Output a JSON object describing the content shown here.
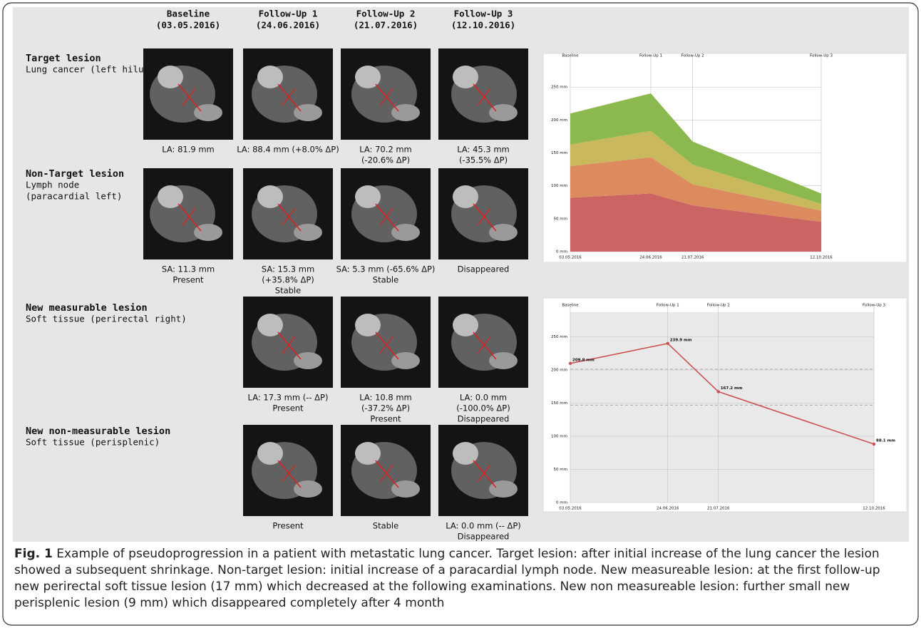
{
  "columns": [
    {
      "title": "Baseline",
      "date": "(03.05.2016)"
    },
    {
      "title": "Follow-Up 1",
      "date": "(24.06.2016)"
    },
    {
      "title": "Follow-Up 2",
      "date": "(21.07.2016)"
    },
    {
      "title": "Follow-Up 3",
      "date": "(12.10.2016)"
    }
  ],
  "rows": [
    {
      "title": "Target lesion",
      "subtitle": [
        "Lung cancer (left hilus)"
      ],
      "cells": [
        {
          "lines": [
            "LA: 81.9 mm"
          ]
        },
        {
          "lines": [
            "LA: 88.4 mm (+8.0% ΔP)"
          ]
        },
        {
          "lines": [
            "LA: 70.2 mm",
            "(-20.6% ΔP)"
          ]
        },
        {
          "lines": [
            "LA: 45.3 mm",
            "(-35.5% ΔP)"
          ]
        }
      ]
    },
    {
      "title": "Non-Target lesion",
      "subtitle": [
        "Lymph node",
        "(paracardial left)"
      ],
      "cells": [
        {
          "lines": [
            "SA: 11.3 mm",
            "Present"
          ]
        },
        {
          "lines": [
            "SA: 15.3 mm",
            "(+35.8% ΔP)",
            "Stable"
          ]
        },
        {
          "lines": [
            "SA: 5.3 mm (-65.6% ΔP)",
            "Stable"
          ]
        },
        {
          "lines": [
            "Disappeared"
          ]
        }
      ]
    },
    {
      "title": "New measurable lesion",
      "subtitle": [
        "Soft tissue (perirectal right)"
      ],
      "cells": [
        null,
        {
          "lines": [
            "LA: 17.3 mm (-- ΔP)",
            "Present"
          ]
        },
        {
          "lines": [
            "LA: 10.8 mm",
            "(-37.2% ΔP)",
            "Present"
          ]
        },
        {
          "lines": [
            "LA: 0.0 mm",
            "(-100.0% ΔP)",
            "Disappeared"
          ]
        }
      ]
    },
    {
      "title": "New non-measurable lesion",
      "subtitle": [
        "Soft tissue (perisplenic)"
      ],
      "cells": [
        null,
        {
          "lines": [
            "Present"
          ]
        },
        {
          "lines": [
            "Stable"
          ]
        },
        {
          "lines": [
            "LA: 0.0 mm (-- ΔP)",
            "Disappeared"
          ]
        }
      ]
    }
  ],
  "caption": {
    "label": "Fig. 1",
    "text": "Example of pseudoprogression in a patient with metastatic lung cancer. Target lesion: after initial increase of the lung cancer the lesion showed a subsequent shrinkage. Non-target lesion: initial increase of a paracardial lymph node. New measureable lesion: at the first follow-up new perirectal soft tissue lesion (17 mm) which decreased at the following examinations. New non measureable lesion: further small new perisplenic lesion (9 mm) which disappeared completely after 4 month"
  },
  "chart_data": [
    {
      "type": "area",
      "stacked": true,
      "x": [
        "03.05.2016",
        "24.06.2016",
        "21.07.2016",
        "12.10.2016"
      ],
      "top_labels": [
        "Baseline",
        "Follow-Up 1",
        "Follow-Up 2",
        "Follow-Up 3"
      ],
      "series": [
        {
          "color": "#cd6464",
          "values": [
            81.9,
            88.4,
            70.2,
            45.3
          ]
        },
        {
          "color": "#dc8b5e",
          "values": [
            48,
            55,
            32,
            17
          ]
        },
        {
          "color": "#c9b85c",
          "values": [
            33,
            40,
            30,
            10
          ]
        },
        {
          "color": "#8bb94f",
          "values": [
            47,
            57,
            35,
            16
          ]
        }
      ],
      "ylim": [
        0,
        287
      ],
      "yticks": [
        {
          "value": 0,
          "label": "0 mm"
        },
        {
          "value": 50,
          "label": "50 mm"
        },
        {
          "value": 100,
          "label": "100 mm"
        },
        {
          "value": 150,
          "label": "150 mm"
        },
        {
          "value": 200,
          "label": "200 mm"
        },
        {
          "value": 250,
          "label": "250 mm"
        }
      ],
      "grid": true
    },
    {
      "type": "line",
      "x": [
        "03.05.2016",
        "24.06.2016",
        "21.07.2016",
        "12.10.2016"
      ],
      "top_labels": [
        "Baseline",
        "Follow-Up 1",
        "Follow-Up 2",
        "Follow-Up 3"
      ],
      "series": [
        {
          "color": "#cc5252",
          "values": [
            209.8,
            239.9,
            167.2,
            88.1
          ],
          "value_labels": [
            "209.8 mm",
            "239.9 mm",
            "167.2 mm",
            "88.1 mm"
          ]
        }
      ],
      "reference_lines": [
        201,
        147
      ],
      "ylim": [
        0,
        287
      ],
      "yticks": [
        {
          "value": 0,
          "label": "0 mm"
        },
        {
          "value": 50,
          "label": "50 mm"
        },
        {
          "value": 100,
          "label": "100 mm"
        },
        {
          "value": 150,
          "label": "150 mm"
        },
        {
          "value": 200,
          "label": "200 mm"
        },
        {
          "value": 250,
          "label": "250 mm"
        }
      ],
      "grid": true
    }
  ]
}
